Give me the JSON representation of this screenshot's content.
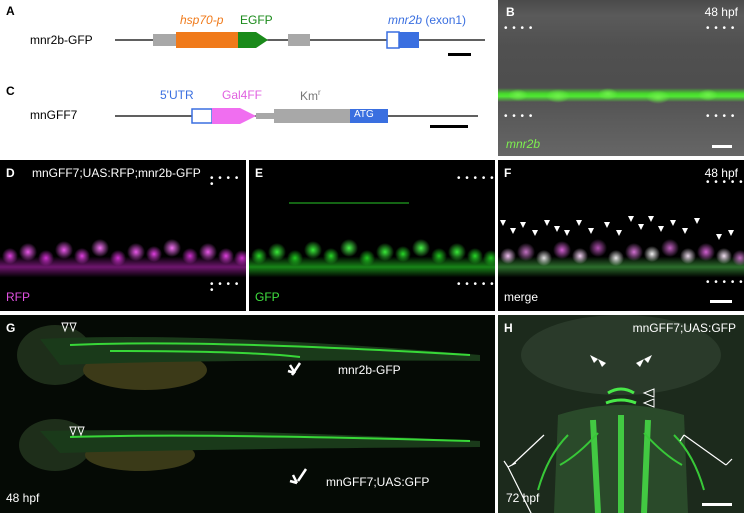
{
  "panelA": {
    "label": "A",
    "construct": "mnr2b-GFP",
    "promoter": "hsp70-p",
    "reporter": "EGFP",
    "gene": "mnr2b",
    "exon": "(exon1)",
    "colors": {
      "promoter": "#f07a1a",
      "reporter": "#1a8a1a",
      "gene": "#3a6fe0",
      "spacer": "#a8a8a8"
    }
  },
  "panelB": {
    "label": "B",
    "stage": "48 hpf",
    "gene": "mnr2b"
  },
  "panelC": {
    "label": "C",
    "construct": "mnGFF7",
    "utr": "5'UTR",
    "driver": "Gal4FF",
    "km": "Km",
    "km_sup": "r",
    "atg": "ATG",
    "colors": {
      "utr": "#3a6fe0",
      "driver": "#f06ef0",
      "km": "#a8a8a8",
      "atg": "#3a6fe0"
    }
  },
  "panelD": {
    "label": "D",
    "title": "mnGFF7;UAS:RFP;mnr2b-GFP",
    "channel": "RFP"
  },
  "panelE": {
    "label": "E",
    "channel": "GFP"
  },
  "panelF": {
    "label": "F",
    "stage": "48 hpf",
    "channel": "merge"
  },
  "panelG": {
    "label": "G",
    "stage": "48 hpf",
    "top": "mnr2b-GFP",
    "bottom": "mnGFF7;UAS:GFP"
  },
  "panelH": {
    "label": "H",
    "title": "mnGFF7;UAS:GFP",
    "stage": "72 hpf"
  }
}
